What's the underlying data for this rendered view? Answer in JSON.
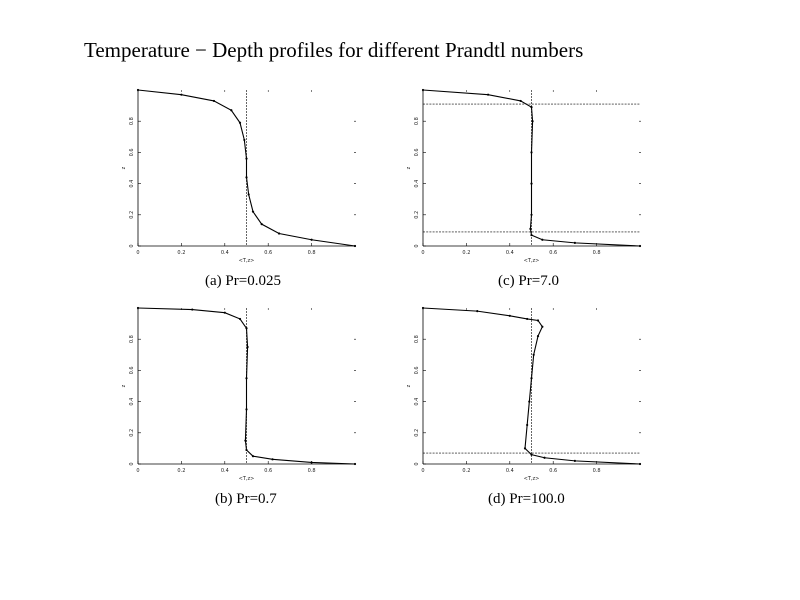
{
  "page": {
    "title": "Temperature − Depth profiles for different Prandtl numbers"
  },
  "chart_data": [
    {
      "type": "line",
      "panel": "a",
      "caption": "(a) Pr=0.025",
      "xlabel": "<T,z>",
      "ylabel": "z",
      "xlim": [
        0,
        1
      ],
      "ylim": [
        0,
        1
      ],
      "x_ticks": [
        "0",
        "0.2",
        "0.4",
        "0.6",
        "0.8"
      ],
      "y_ticks": [
        "0",
        "0.2",
        "0.4",
        "0.6",
        "0.8"
      ],
      "grid": false,
      "vlines": [
        0.5
      ],
      "hlines": [],
      "series": [
        {
          "x": [
            0.0,
            0.2,
            0.35,
            0.43,
            0.47,
            0.49,
            0.5,
            0.5,
            0.51,
            0.53,
            0.57,
            0.65,
            0.8,
            1.0
          ],
          "y": [
            1.0,
            0.97,
            0.93,
            0.87,
            0.79,
            0.68,
            0.56,
            0.44,
            0.33,
            0.22,
            0.14,
            0.08,
            0.04,
            0.0
          ]
        }
      ]
    },
    {
      "type": "line",
      "panel": "c",
      "caption": "(c) Pr=7.0",
      "xlabel": "<T,z>",
      "ylabel": "z",
      "xlim": [
        0,
        1
      ],
      "ylim": [
        0,
        1
      ],
      "x_ticks": [
        "0",
        "0.2",
        "0.4",
        "0.6",
        "0.8"
      ],
      "y_ticks": [
        "0",
        "0.2",
        "0.4",
        "0.6",
        "0.8"
      ],
      "grid": false,
      "vlines": [
        0.5
      ],
      "hlines": [
        0.91,
        0.09
      ],
      "series": [
        {
          "x": [
            0.0,
            0.3,
            0.45,
            0.5,
            0.505,
            0.5,
            0.5,
            0.5,
            0.495,
            0.5,
            0.55,
            0.7,
            1.0
          ],
          "y": [
            1.0,
            0.97,
            0.93,
            0.89,
            0.8,
            0.6,
            0.4,
            0.2,
            0.11,
            0.07,
            0.04,
            0.02,
            0.0
          ]
        }
      ]
    },
    {
      "type": "line",
      "panel": "b",
      "caption": "(b) Pr=0.7",
      "xlabel": "<T,z>",
      "ylabel": "z",
      "xlim": [
        0,
        1
      ],
      "ylim": [
        0,
        1
      ],
      "x_ticks": [
        "0",
        "0.2",
        "0.4",
        "0.6",
        "0.8"
      ],
      "y_ticks": [
        "0",
        "0.2",
        "0.4",
        "0.6",
        "0.8"
      ],
      "grid": false,
      "vlines": [
        0.5
      ],
      "hlines": [],
      "series": [
        {
          "x": [
            0.0,
            0.25,
            0.4,
            0.47,
            0.5,
            0.505,
            0.5,
            0.5,
            0.495,
            0.5,
            0.53,
            0.62,
            0.8,
            1.0
          ],
          "y": [
            1.0,
            0.99,
            0.97,
            0.93,
            0.87,
            0.75,
            0.55,
            0.35,
            0.15,
            0.09,
            0.05,
            0.03,
            0.01,
            0.0
          ]
        }
      ]
    },
    {
      "type": "line",
      "panel": "d",
      "caption": "(d) Pr=100.0",
      "xlabel": "<T,z>",
      "ylabel": "z",
      "xlim": [
        0,
        1
      ],
      "ylim": [
        0,
        1
      ],
      "x_ticks": [
        "0",
        "0.2",
        "0.4",
        "0.6",
        "0.8"
      ],
      "y_ticks": [
        "0",
        "0.2",
        "0.4",
        "0.6",
        "0.8"
      ],
      "grid": false,
      "vlines": [
        0.5
      ],
      "hlines": [
        0.07
      ],
      "series": [
        {
          "x": [
            0.0,
            0.25,
            0.4,
            0.48,
            0.53,
            0.55,
            0.53,
            0.51,
            0.5,
            0.49,
            0.48,
            0.47,
            0.5,
            0.56,
            0.7,
            1.0
          ],
          "y": [
            1.0,
            0.98,
            0.95,
            0.93,
            0.92,
            0.88,
            0.82,
            0.7,
            0.55,
            0.4,
            0.25,
            0.1,
            0.06,
            0.04,
            0.02,
            0.0
          ]
        }
      ]
    }
  ]
}
